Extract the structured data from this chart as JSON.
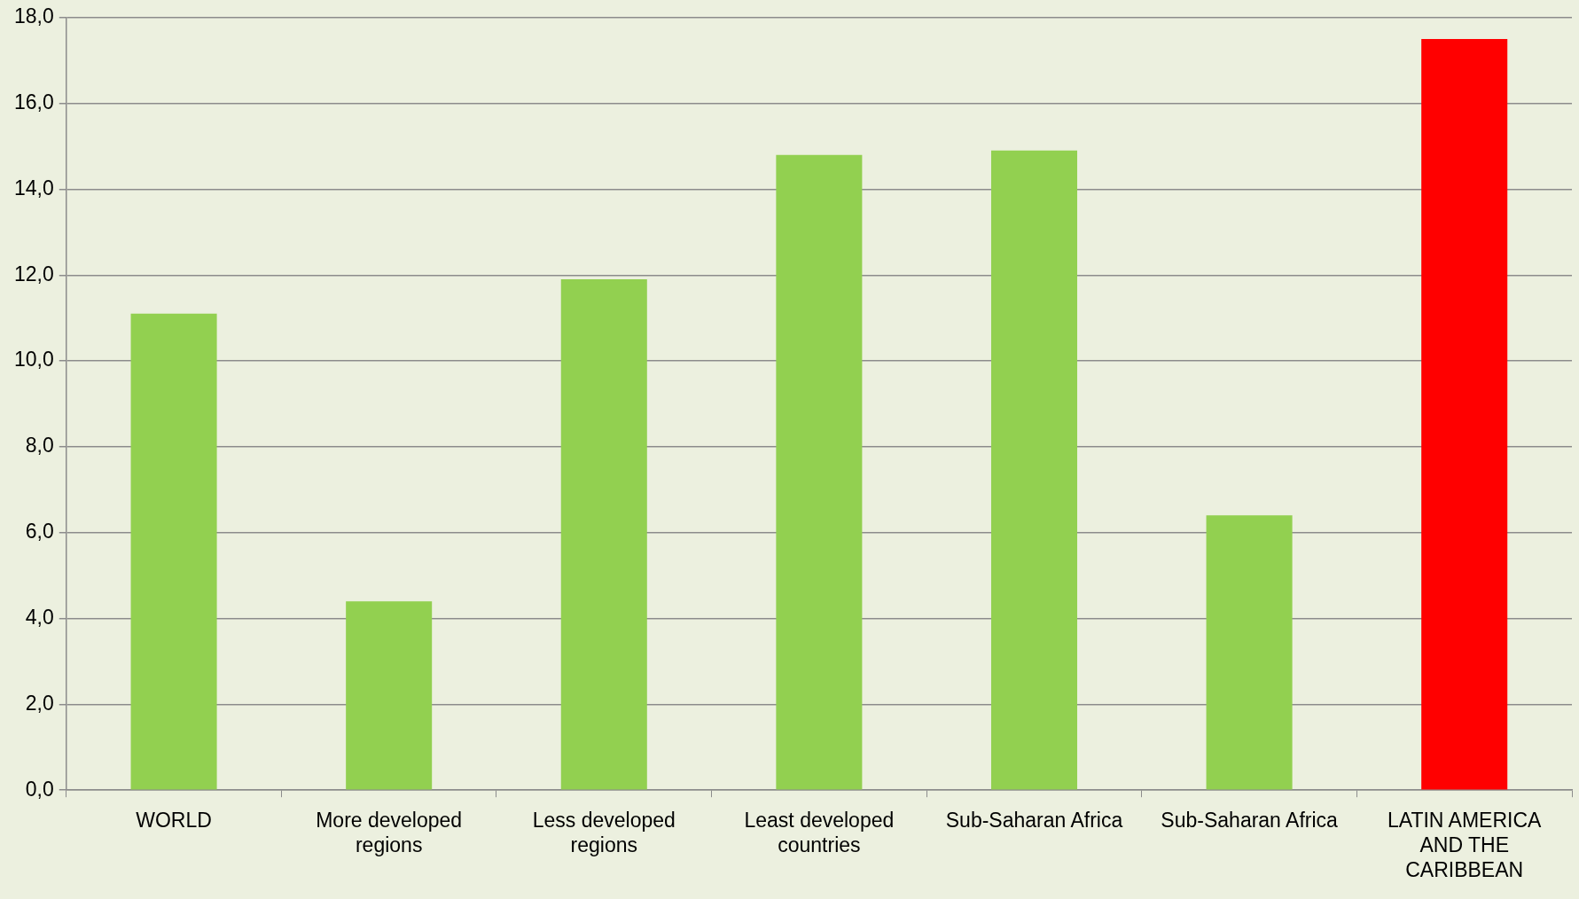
{
  "chart_data": {
    "type": "bar",
    "categories": [
      "WORLD",
      "More developed\nregions",
      "Less developed\nregions",
      "Least developed\ncountries",
      "Sub-Saharan Africa",
      "Sub-Saharan Africa",
      "LATIN AMERICA\nAND THE\nCARIBBEAN"
    ],
    "values": [
      11.1,
      4.4,
      11.9,
      14.8,
      14.9,
      6.4,
      17.5
    ],
    "colors": [
      "#92d050",
      "#92d050",
      "#92d050",
      "#92d050",
      "#92d050",
      "#92d050",
      "#ff0000"
    ],
    "ylim": [
      0,
      18
    ],
    "yticks": [
      {
        "value": 0,
        "label": "0,0"
      },
      {
        "value": 2,
        "label": "2,0"
      },
      {
        "value": 4,
        "label": "4,0"
      },
      {
        "value": 6,
        "label": "6,0"
      },
      {
        "value": 8,
        "label": "8,0"
      },
      {
        "value": 10,
        "label": "10,0"
      },
      {
        "value": 12,
        "label": "12,0"
      },
      {
        "value": 14,
        "label": "14,0"
      },
      {
        "value": 16,
        "label": "16,0"
      },
      {
        "value": 18,
        "label": "18,0"
      }
    ],
    "grid": "y",
    "legend": false
  }
}
